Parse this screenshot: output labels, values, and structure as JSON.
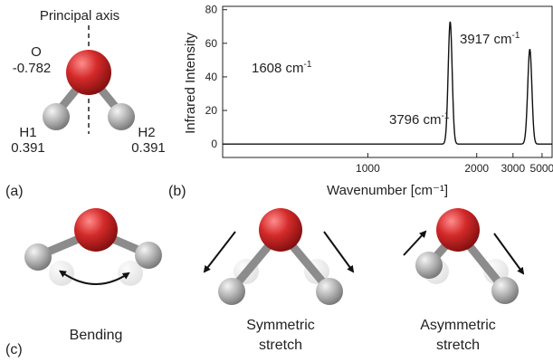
{
  "panel_a": {
    "label": "(a)",
    "axis_label": "Principal axis",
    "oxygen": {
      "name": "O",
      "charge": "-0.782"
    },
    "h1": {
      "name": "H1",
      "charge": "0.391"
    },
    "h2": {
      "name": "H2",
      "charge": "0.391"
    }
  },
  "panel_b": {
    "label": "(b)",
    "peak_labels": [
      {
        "base": "1608 cm",
        "sup": "-1"
      },
      {
        "base": "3796 cm",
        "sup": "-1"
      },
      {
        "base": "3917 cm",
        "sup": "-1"
      }
    ]
  },
  "panel_c": {
    "label": "(c)",
    "modes": [
      {
        "line1": "Bending",
        "line2": ""
      },
      {
        "line1": "Symmetric",
        "line2": "stretch"
      },
      {
        "line1": "Asymmetric",
        "line2": "stretch"
      }
    ]
  },
  "colors": {
    "oxygen": "#d42a2a",
    "hydrogen": "#a8a8a8",
    "bond": "#8c8c8c"
  },
  "chart_data": {
    "type": "line",
    "xlabel": "Wavenumber [cm⁻¹]",
    "ylabel": "Infrared Intensity",
    "x_scale": "reciprocal",
    "xlim": [
      600,
      6500
    ],
    "xticks": [
      1000,
      2000,
      3000,
      5000
    ],
    "ylim": [
      -8,
      82
    ],
    "yticks": [
      0,
      20,
      40,
      60,
      80
    ],
    "grid": false,
    "peaks": [
      {
        "x": 1608,
        "y": 73
      },
      {
        "x": 3796,
        "y": 8
      },
      {
        "x": 3917,
        "y": 51
      }
    ]
  }
}
